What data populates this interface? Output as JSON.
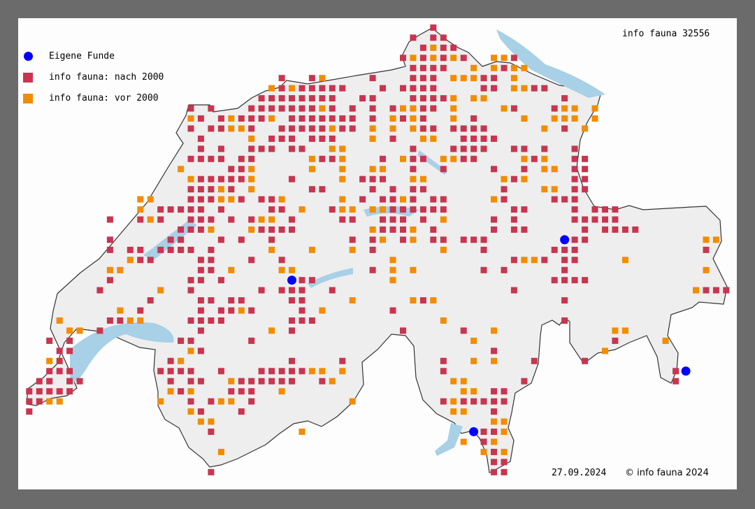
{
  "title": "info fauna 32556",
  "legend": [
    {
      "label": "Eigene Funde",
      "color": "#0000ff",
      "shape": "circle"
    },
    {
      "label": "info fauna: nach 2000",
      "color": "#c8354f",
      "shape": "square"
    },
    {
      "label": "info fauna: vor 2000",
      "color": "#f28c00",
      "shape": "square"
    }
  ],
  "footer": {
    "date": "27.09.2024",
    "copyright": "© info fauna 2024"
  },
  "colors": {
    "lake": "#a8d0e6",
    "border": "#333333",
    "land": "#eeeeee"
  },
  "chart_data": {
    "type": "map",
    "grid_km": 5,
    "region": "Schweiz",
    "eigene_funde": [
      [
        615,
        170
      ],
      [
        750,
        190
      ],
      [
        810,
        125
      ],
      [
        705,
        95
      ]
    ],
    "cells": [
      {
        "y": 295,
        "nach": [
          685
        ],
        "vor": []
      },
      {
        "y": 290,
        "nach": [
          675,
          685,
          690
        ],
        "vor": []
      },
      {
        "y": 285,
        "nach": [
          680,
          690,
          695
        ],
        "vor": [
          685
        ]
      },
      {
        "y": 280,
        "nach": [
          670,
          680,
          690,
          700,
          725
        ],
        "vor": [
          675,
          685,
          695,
          715,
          720
        ]
      },
      {
        "y": 275,
        "nach": [
          675,
          680,
          685,
          690,
          720
        ],
        "vor": [
          705,
          715,
          725,
          730
        ]
      },
      {
        "y": 270,
        "nach": [
          610,
          625,
          655,
          675,
          680,
          685,
          710,
          715
        ],
        "vor": [
          630,
          695,
          700,
          705,
          725
        ]
      },
      {
        "y": 265,
        "nach": [
          610,
          620,
          625,
          630,
          635,
          640,
          660,
          670,
          675,
          680,
          685,
          710,
          715,
          735,
          740
        ],
        "vor": [
          605,
          615,
          725,
          730
        ]
      },
      {
        "y": 260,
        "nach": [
          600,
          605,
          610,
          615,
          620,
          625,
          630,
          635,
          650,
          655,
          675,
          680,
          685,
          690,
          750
        ],
        "vor": [
          695,
          705,
          710
        ]
      },
      {
        "y": 255,
        "nach": [
          565,
          575,
          595,
          600,
          605,
          610,
          615,
          620,
          625,
          635,
          645,
          655,
          665,
          680,
          685,
          725,
          745
        ],
        "vor": [
          630,
          670,
          675,
          695,
          720,
          750,
          755,
          765
        ]
      },
      {
        "y": 250,
        "nach": [
          570,
          580,
          590,
          595,
          600,
          615,
          620,
          625,
          630,
          635,
          640,
          645,
          655,
          670,
          680,
          705
        ],
        "vor": [
          565,
          585,
          605,
          665,
          675,
          695,
          730,
          745,
          750,
          755,
          765
        ]
      },
      {
        "y": 245,
        "nach": [
          565,
          575,
          580,
          595,
          610,
          615,
          620,
          625,
          630,
          640,
          645,
          680,
          685,
          695,
          700,
          705,
          710,
          750
        ],
        "vor": [
          585,
          590,
          635,
          655,
          665,
          675,
          740,
          760
        ]
      },
      {
        "y": 240,
        "nach": [
          570,
          605,
          610,
          615,
          625,
          630,
          635,
          665,
          700,
          705,
          710,
          715
        ],
        "vor": [
          595,
          655,
          680,
          685
        ]
      },
      {
        "y": 235,
        "nach": [
          570,
          580,
          595,
          600,
          605,
          615,
          620,
          675,
          695,
          700,
          705,
          710,
          725,
          730,
          740,
          755
        ],
        "vor": [
          635,
          640
        ]
      },
      {
        "y": 230,
        "nach": [
          565,
          570,
          575,
          580,
          590,
          595,
          630,
          635,
          660,
          675,
          680,
          700,
          705,
          735,
          755,
          760
        ],
        "vor": [
          625,
          640,
          670,
          690,
          695,
          730,
          740
        ]
      },
      {
        "y": 225,
        "nach": [
          585,
          590,
          675,
          690,
          715,
          730,
          755,
          760
        ],
        "vor": [
          560,
          595,
          625,
          640,
          655,
          660,
          740,
          745
        ]
      },
      {
        "y": 220,
        "nach": [
          570,
          575,
          580,
          585,
          590,
          615,
          650,
          655,
          660,
          725,
          755,
          760
        ],
        "vor": [
          565,
          595,
          640,
          675,
          680,
          720,
          730
        ]
      },
      {
        "y": 215,
        "nach": [
          565,
          570,
          575,
          585,
          625,
          630,
          655,
          665,
          675,
          680,
          720,
          755,
          760
        ],
        "vor": [
          580,
          595,
          740,
          745
        ]
      },
      {
        "y": 210,
        "nach": [
          565,
          570,
          575,
          590,
          600,
          605,
          650,
          660,
          665,
          675,
          685,
          690,
          720,
          745,
          750,
          755
        ],
        "vor": [
          540,
          545,
          580,
          585,
          610,
          640,
          670,
          715
        ]
      },
      {
        "y": 205,
        "nach": [
          550,
          555,
          560,
          565,
          570,
          580,
          605,
          610,
          635,
          665,
          670,
          675,
          680,
          685,
          690,
          725,
          730,
          755,
          765,
          770,
          775
        ],
        "vor": [
          540,
          620,
          640,
          645,
          655,
          660
        ]
      },
      {
        "y": 200,
        "nach": [
          525,
          540,
          550,
          565,
          570,
          575,
          585,
          595,
          615,
          640,
          645,
          660,
          665,
          670,
          680,
          715,
          725,
          755,
          760,
          765,
          770,
          775
        ],
        "vor": [
          545,
          600,
          605,
          690
        ]
      },
      {
        "y": 195,
        "nach": [
          560,
          565,
          570,
          600,
          605,
          610,
          615,
          660,
          665,
          670,
          685,
          715,
          725,
          730,
          760,
          770,
          775,
          780,
          785
        ],
        "vor": [
          575,
          595,
          655,
          675
        ]
      },
      {
        "y": 190,
        "nach": [
          525,
          555,
          560,
          580,
          590,
          605,
          645,
          655,
          670,
          685,
          690,
          700,
          705,
          710,
          755,
          760
        ],
        "vor": [
          660,
          675,
          820,
          825
        ]
      },
      {
        "y": 185,
        "nach": [
          525,
          535,
          540,
          550,
          555,
          560,
          565,
          575,
          655,
          710,
          745,
          750,
          755,
          820
        ],
        "vor": [
          605,
          625,
          645,
          690
        ]
      },
      {
        "y": 180,
        "nach": [
          540,
          545,
          570,
          575,
          595,
          610,
          725,
          740,
          750,
          755
        ],
        "vor": [
          535,
          665,
          730,
          735,
          780
        ]
      },
      {
        "y": 175,
        "nach": [
          570,
          575,
          655,
          710,
          720,
          750
        ],
        "vor": [
          525,
          530,
          585,
          610,
          615,
          665,
          675,
          820
        ]
      },
      {
        "y": 170,
        "nach": [
          525,
          565,
          570,
          580,
          620,
          625,
          745,
          750,
          755,
          760
        ],
        "vor": [
          665
        ]
      },
      {
        "y": 165,
        "nach": [
          520,
          565,
          600,
          610,
          615,
          620,
          635,
          725,
          820,
          825,
          830
        ],
        "vor": [
          550,
          815
        ]
      },
      {
        "y": 160,
        "nach": [
          545,
          570,
          575,
          585,
          590,
          615,
          620,
          680,
          750
        ],
        "vor": [
          645,
          675,
          685
        ]
      },
      {
        "y": 155,
        "nach": [
          540,
          570,
          580,
          585,
          595,
          620,
          665
        ],
        "vor": [
          530,
          590,
          630
        ]
      },
      {
        "y": 150,
        "nach": [
          525,
          530,
          565,
          570,
          575,
          580,
          615,
          620,
          625,
          750
        ],
        "vor": [
          500,
          535,
          540,
          690
        ]
      },
      {
        "y": 145,
        "nach": [
          520,
          570,
          615,
          670,
          700
        ],
        "vor": [
          505,
          510,
          605,
          715,
          775,
          780
        ]
      },
      {
        "y": 140,
        "nach": [
          495,
          505,
          560,
          565,
          595,
          775
        ],
        "vor": [
          705,
          800
        ]
      },
      {
        "y": 135,
        "nach": [
          500,
          505,
          570,
          715
        ],
        "vor": [
          565,
          770
        ]
      },
      {
        "y": 130,
        "nach": [
          500,
          555,
          615,
          640,
          690,
          735,
          760
        ],
        "vor": [
          495,
          560,
          705,
          715
        ]
      },
      {
        "y": 125,
        "nach": [
          495,
          500,
          505,
          550,
          555,
          560,
          565,
          580,
          600,
          605,
          610,
          615,
          620,
          690,
          805
        ],
        "vor": [
          625,
          630,
          640
        ]
      },
      {
        "y": 120,
        "nach": [
          490,
          495,
          505,
          510,
          555,
          565,
          570,
          590,
          595,
          600,
          605,
          610,
          615,
          630,
          730,
          805
        ],
        "vor": [
          585,
          635,
          695,
          700
        ]
      },
      {
        "y": 115,
        "nach": [
          485,
          490,
          495,
          500,
          505,
          560,
          585,
          590,
          595,
          715,
          720
        ],
        "vor": [
          555,
          565,
          610,
          700,
          705
        ]
      },
      {
        "y": 110,
        "nach": [
          485,
          490,
          565,
          575,
          595,
          690,
          700,
          705,
          710,
          715,
          720
        ],
        "vor": [
          495,
          500,
          550,
          580,
          585,
          645,
          695
        ]
      },
      {
        "y": 105,
        "nach": [
          485,
          570,
          590,
          715
        ],
        "vor": [
          565,
          695,
          700
        ]
      },
      {
        "y": 100,
        "nach": [],
        "vor": [
          570,
          575,
          715,
          720
        ]
      },
      {
        "y": 95,
        "nach": [
          575,
          710,
          715
        ],
        "vor": [
          620,
          720
        ]
      },
      {
        "y": 90,
        "nach": [
          710
        ],
        "vor": [
          700,
          715
        ]
      },
      {
        "y": 85,
        "nach": [
          715
        ],
        "vor": [
          580,
          710,
          720
        ]
      },
      {
        "y": 80,
        "nach": [
          715,
          720
        ],
        "vor": []
      },
      {
        "y": 75,
        "nach": [
          575,
          715,
          720
        ],
        "vor": []
      }
    ]
  }
}
